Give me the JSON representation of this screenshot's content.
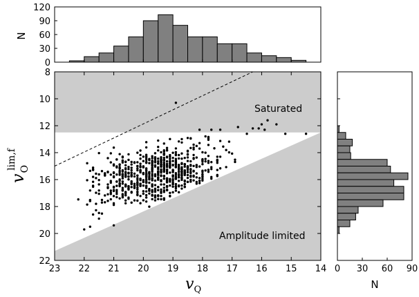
{
  "chart_data": [
    {
      "id": "main",
      "type": "scatter",
      "xlabel_symbol": "v",
      "xlabel_sub": "Q",
      "ylabel_symbol": "v",
      "ylabel_sub": "O",
      "ylabel_sup": "lim,f",
      "xlim": [
        23,
        14
      ],
      "ylim": [
        22,
        8
      ],
      "x_ticks": [
        23,
        22,
        21,
        20,
        19,
        18,
        17,
        16,
        15,
        14
      ],
      "y_ticks": [
        8,
        10,
        12,
        14,
        16,
        18,
        20,
        22
      ],
      "x_inverted": true,
      "y_inverted": true,
      "saturated_limit": 12.5,
      "amplitude_limit_line": [
        [
          23,
          21.3
        ],
        [
          14,
          12.5
        ]
      ],
      "dashed_line": [
        [
          23,
          15.0
        ],
        [
          16.3,
          8.0
        ]
      ],
      "annotations": [
        "Saturated",
        "Amplitude limited"
      ],
      "outliers": [
        {
          "x": 18.9,
          "y": 10.3
        },
        {
          "x": 18.1,
          "y": 12.3
        },
        {
          "x": 17.7,
          "y": 12.3
        },
        {
          "x": 17.4,
          "y": 12.3
        },
        {
          "x": 16.8,
          "y": 12.1
        },
        {
          "x": 16.5,
          "y": 12.6
        },
        {
          "x": 16.3,
          "y": 12.2
        },
        {
          "x": 16.1,
          "y": 12.2
        },
        {
          "x": 16.0,
          "y": 11.9
        },
        {
          "x": 15.9,
          "y": 12.3
        },
        {
          "x": 15.8,
          "y": 11.6
        },
        {
          "x": 15.5,
          "y": 11.9
        },
        {
          "x": 15.2,
          "y": 12.6
        },
        {
          "x": 14.5,
          "y": 12.6
        },
        {
          "x": 22.0,
          "y": 19.7
        },
        {
          "x": 21.8,
          "y": 19.5
        },
        {
          "x": 21.5,
          "y": 18.9
        },
        {
          "x": 21.0,
          "y": 19.4
        }
      ]
    },
    {
      "id": "top-hist",
      "type": "bar",
      "ylabel": "N",
      "ylim": [
        0,
        120
      ],
      "y_ticks": [
        0,
        30,
        60,
        90,
        120
      ],
      "bin_edges": [
        22.5,
        22.0,
        21.5,
        21.0,
        20.5,
        20.0,
        19.5,
        19.0,
        18.5,
        18.0,
        17.5,
        17.0,
        16.5,
        16.0,
        15.5,
        15.0,
        14.5
      ],
      "values": [
        3,
        12,
        20,
        35,
        55,
        90,
        103,
        80,
        55,
        55,
        40,
        40,
        20,
        14,
        10,
        4
      ]
    },
    {
      "id": "side-hist",
      "type": "bar",
      "orientation": "horizontal",
      "xlabel": "N",
      "xlim": [
        0,
        90
      ],
      "x_ticks": [
        0,
        30,
        60,
        90
      ],
      "bin_edges": [
        12.0,
        12.5,
        13.0,
        13.5,
        14.0,
        14.5,
        15.0,
        15.5,
        16.0,
        16.5,
        17.0,
        17.5,
        18.0,
        18.5,
        19.0,
        19.5,
        20.0
      ],
      "values": [
        2,
        10,
        18,
        15,
        16,
        60,
        64,
        85,
        68,
        80,
        80,
        55,
        25,
        22,
        15,
        2
      ]
    }
  ]
}
